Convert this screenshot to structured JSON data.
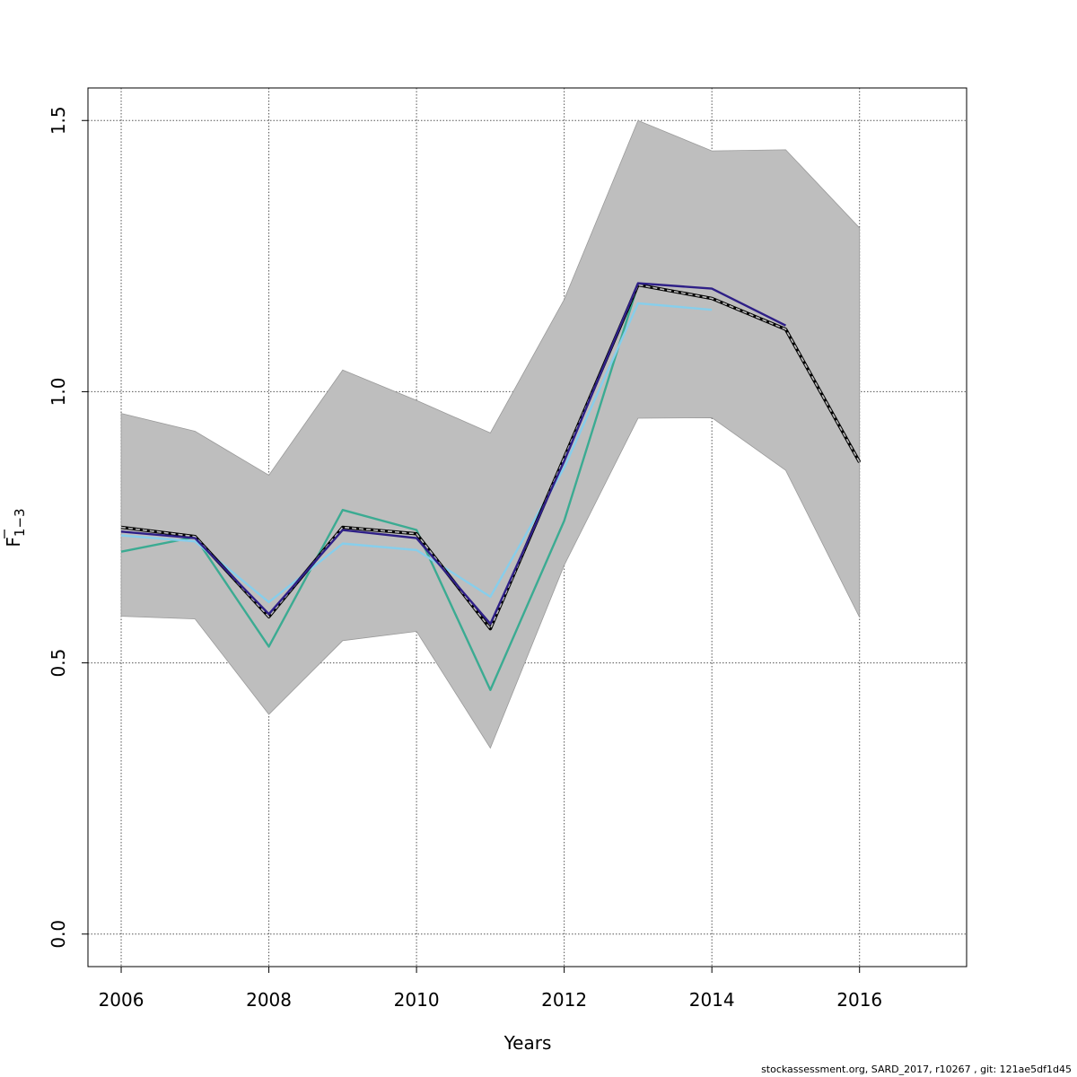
{
  "chart_data": {
    "type": "line",
    "xlabel": "Years",
    "ylabel": {
      "main": "F",
      "sub": "1−3"
    },
    "xlim": [
      2005.55,
      2017.45
    ],
    "ylim": [
      -0.06,
      1.56
    ],
    "x_ticks": [
      2006,
      2008,
      2010,
      2012,
      2014,
      2016
    ],
    "y_ticks": [
      0.0,
      0.5,
      1.0,
      1.5
    ],
    "y_tick_labels": [
      "0.0",
      "0.5",
      "1.0",
      "1.5"
    ],
    "grid": true,
    "confidence_band": {
      "color": "#bebebe",
      "x": [
        2006,
        2007,
        2008,
        2009,
        2010,
        2011,
        2012,
        2013,
        2014,
        2015,
        2016
      ],
      "upper": [
        0.96,
        0.927,
        0.846,
        1.04,
        0.984,
        0.924,
        1.17,
        1.5,
        1.444,
        1.446,
        1.302
      ],
      "lower": [
        0.586,
        0.581,
        0.405,
        0.541,
        0.558,
        0.343,
        0.68,
        0.951,
        0.952,
        0.855,
        0.584
      ]
    },
    "series": [
      {
        "color": "#3bab92",
        "dashed": false,
        "x": [
          2006,
          2007,
          2008,
          2009,
          2010,
          2011,
          2012,
          2013
        ],
        "values": [
          0.705,
          0.732,
          0.53,
          0.782,
          0.745,
          0.45,
          0.762,
          1.198
        ]
      },
      {
        "color": "#87ceeb",
        "dashed": false,
        "x": [
          2006,
          2007,
          2008,
          2009,
          2010,
          2011,
          2012,
          2013,
          2014
        ],
        "values": [
          0.735,
          0.724,
          0.612,
          0.72,
          0.708,
          0.622,
          0.86,
          1.163,
          1.151
        ]
      },
      {
        "color": "#000000",
        "dashed": false,
        "x": [
          2006,
          2007,
          2008,
          2009,
          2010,
          2011,
          2012,
          2013,
          2014,
          2015,
          2016
        ],
        "values": [
          0.75,
          0.733,
          0.585,
          0.75,
          0.738,
          0.563,
          0.878,
          1.197,
          1.172,
          1.115,
          0.87
        ]
      },
      {
        "color": "#bebebe",
        "dashed": true,
        "x": [
          2006,
          2007,
          2008,
          2009,
          2010,
          2011,
          2012,
          2013,
          2014,
          2015,
          2016
        ],
        "values": [
          0.75,
          0.733,
          0.585,
          0.75,
          0.738,
          0.563,
          0.878,
          1.197,
          1.172,
          1.115,
          0.87
        ]
      },
      {
        "color": "#2e1f87",
        "dashed": false,
        "x": [
          2006,
          2007,
          2008,
          2009,
          2010,
          2011,
          2012,
          2013,
          2014,
          2015
        ],
        "values": [
          0.742,
          0.73,
          0.59,
          0.745,
          0.73,
          0.572,
          0.872,
          1.2,
          1.19,
          1.122
        ]
      }
    ]
  },
  "footer": "stockassessment.org, SARD_2017, r10267 , git: 121ae5df1d45"
}
